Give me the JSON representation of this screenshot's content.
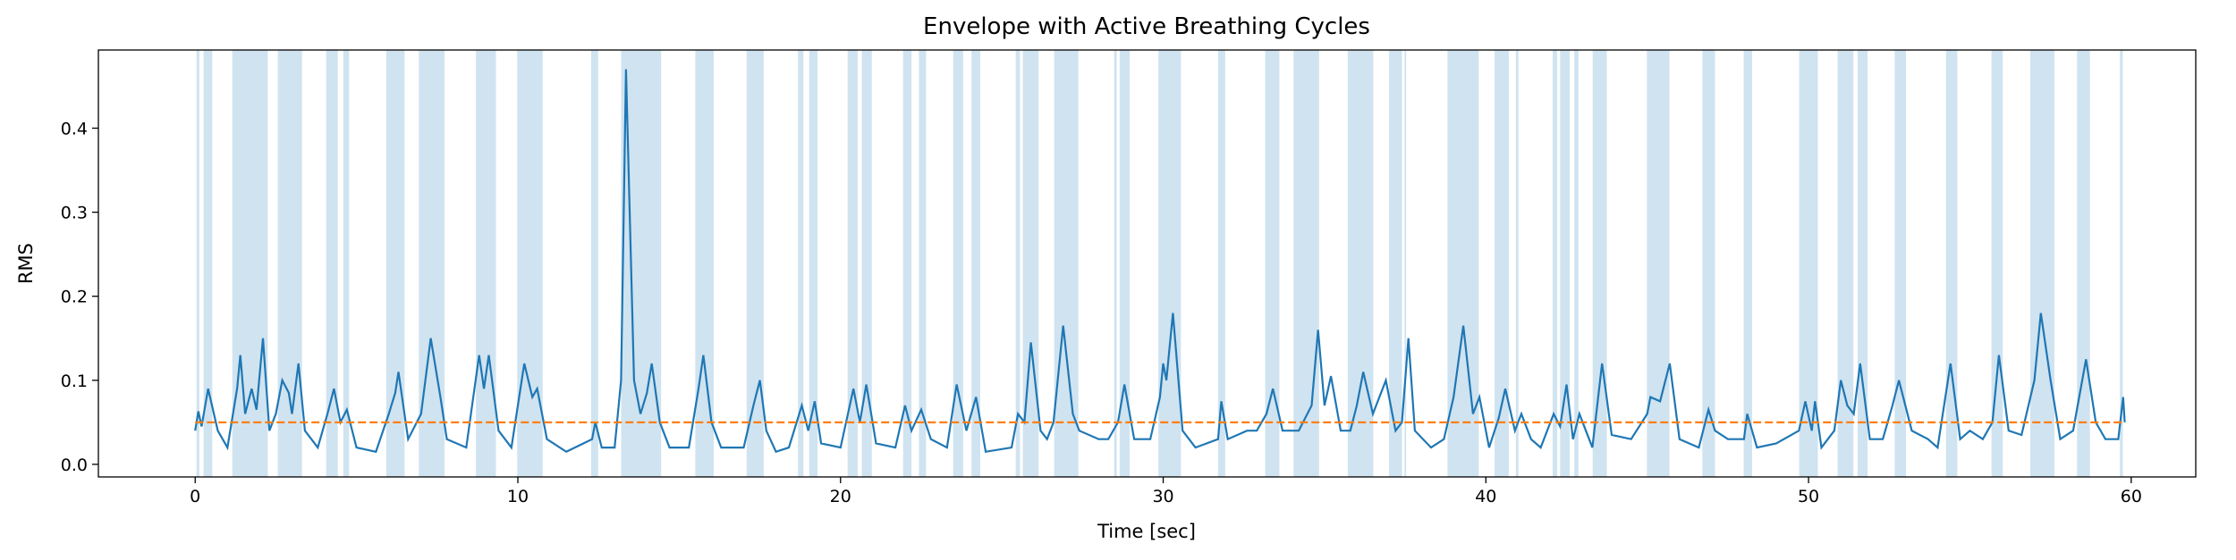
{
  "chart_data": {
    "type": "line",
    "title": "Envelope with Active Breathing Cycles",
    "x_label": "Time [sec]",
    "y_label": "RMS",
    "xlim": [
      -3,
      62
    ],
    "ylim": [
      -0.015,
      0.493
    ],
    "xticks": [
      0,
      10,
      20,
      30,
      40,
      50,
      60
    ],
    "yticks": [
      {
        "value": 0,
        "label": "0.0"
      },
      0.1,
      0.2,
      0.3,
      0.4
    ],
    "threshold": 0.05,
    "threshold_color": "#ff7f0e",
    "span_color": "#a9cce3",
    "spans": [
      [
        0.04,
        0.13
      ],
      [
        0.26,
        0.53
      ],
      [
        1.15,
        2.25
      ],
      [
        2.56,
        3.31
      ],
      [
        4.06,
        4.42
      ],
      [
        4.59,
        4.77
      ],
      [
        5.92,
        6.49
      ],
      [
        6.93,
        7.73
      ],
      [
        8.7,
        9.32
      ],
      [
        9.98,
        10.77
      ],
      [
        12.27,
        12.49
      ],
      [
        13.2,
        14.44
      ],
      [
        15.5,
        16.07
      ],
      [
        17.09,
        17.62
      ],
      [
        18.68,
        18.85
      ],
      [
        19.03,
        19.29
      ],
      [
        20.22,
        20.53
      ],
      [
        20.66,
        20.97
      ],
      [
        21.94,
        22.2
      ],
      [
        22.43,
        22.65
      ],
      [
        23.49,
        23.8
      ],
      [
        24.06,
        24.33
      ],
      [
        25.43,
        25.56
      ],
      [
        25.65,
        26.14
      ],
      [
        26.62,
        27.37
      ],
      [
        28.48,
        28.56
      ],
      [
        28.65,
        28.96
      ],
      [
        29.85,
        30.55
      ],
      [
        31.7,
        31.92
      ],
      [
        33.16,
        33.6
      ],
      [
        34.04,
        34.83
      ],
      [
        35.72,
        36.51
      ],
      [
        37.0,
        37.4
      ],
      [
        37.48,
        37.53
      ],
      [
        38.81,
        39.78
      ],
      [
        40.27,
        40.71
      ],
      [
        40.93,
        41.01
      ],
      [
        42.07,
        42.21
      ],
      [
        42.3,
        42.6
      ],
      [
        42.74,
        42.87
      ],
      [
        43.31,
        43.75
      ],
      [
        44.99,
        45.69
      ],
      [
        46.71,
        47.1
      ],
      [
        47.99,
        48.25
      ],
      [
        49.71,
        50.29
      ],
      [
        50.9,
        51.39
      ],
      [
        51.52,
        51.83
      ],
      [
        52.67,
        53.02
      ],
      [
        54.26,
        54.61
      ],
      [
        55.67,
        56.02
      ],
      [
        56.87,
        57.62
      ],
      [
        58.32,
        58.72
      ],
      [
        59.65,
        59.74
      ]
    ],
    "series": [
      {
        "color": "#1f77b4",
        "x": [
          0,
          0.1,
          0.2,
          0.4,
          0.7,
          1.0,
          1.3,
          1.4,
          1.55,
          1.75,
          1.9,
          2.1,
          2.3,
          2.5,
          2.7,
          2.9,
          3.0,
          3.2,
          3.4,
          3.8,
          4.1,
          4.3,
          4.5,
          4.7,
          5.0,
          5.6,
          6.0,
          6.2,
          6.3,
          6.6,
          7.0,
          7.3,
          7.6,
          7.8,
          8.4,
          8.8,
          8.95,
          9.1,
          9.4,
          9.8,
          10.2,
          10.45,
          10.6,
          10.9,
          11.5,
          12.3,
          12.4,
          12.6,
          13.0,
          13.2,
          13.35,
          13.6,
          13.8,
          14.0,
          14.15,
          14.4,
          14.7,
          15.3,
          15.6,
          15.75,
          16.0,
          16.3,
          17.0,
          17.3,
          17.5,
          17.7,
          18.0,
          18.4,
          18.8,
          19.0,
          19.2,
          19.4,
          20.0,
          20.4,
          20.6,
          20.8,
          21.1,
          21.7,
          22.0,
          22.2,
          22.5,
          22.8,
          23.3,
          23.6,
          23.9,
          24.2,
          24.5,
          25.3,
          25.5,
          25.7,
          25.9,
          26.2,
          26.4,
          26.6,
          26.9,
          27.2,
          27.4,
          28.0,
          28.3,
          28.6,
          28.8,
          29.1,
          29.6,
          29.9,
          30.0,
          30.1,
          30.3,
          30.6,
          31.0,
          31.7,
          31.8,
          32.0,
          32.6,
          32.9,
          33.2,
          33.4,
          33.7,
          34.2,
          34.6,
          34.8,
          35.0,
          35.2,
          35.5,
          35.8,
          36.0,
          36.2,
          36.5,
          36.9,
          37.2,
          37.4,
          37.6,
          37.8,
          38.3,
          38.7,
          39.0,
          39.3,
          39.6,
          39.8,
          40.1,
          40.4,
          40.6,
          40.9,
          41.1,
          41.4,
          41.7,
          42.1,
          42.3,
          42.5,
          42.7,
          42.9,
          43.1,
          43.3,
          43.6,
          43.9,
          44.5,
          45.0,
          45.1,
          45.4,
          45.7,
          46.0,
          46.6,
          46.9,
          47.1,
          47.5,
          48.0,
          48.1,
          48.4,
          49.0,
          49.7,
          49.9,
          50.1,
          50.2,
          50.4,
          50.8,
          51.0,
          51.2,
          51.4,
          51.6,
          51.9,
          52.3,
          52.6,
          52.8,
          53.2,
          53.7,
          54.0,
          54.4,
          54.7,
          55.0,
          55.4,
          55.7,
          55.9,
          56.2,
          56.6,
          57.0,
          57.2,
          57.5,
          57.8,
          58.2,
          58.6,
          58.9,
          59.2,
          59.6,
          59.75,
          59.8
        ],
        "values": [
          0.04,
          0.063,
          0.045,
          0.09,
          0.04,
          0.02,
          0.09,
          0.13,
          0.06,
          0.09,
          0.065,
          0.15,
          0.04,
          0.06,
          0.1,
          0.085,
          0.06,
          0.12,
          0.04,
          0.02,
          0.06,
          0.09,
          0.05,
          0.065,
          0.02,
          0.015,
          0.06,
          0.085,
          0.11,
          0.03,
          0.06,
          0.15,
          0.08,
          0.03,
          0.02,
          0.13,
          0.09,
          0.13,
          0.04,
          0.02,
          0.12,
          0.08,
          0.09,
          0.03,
          0.015,
          0.03,
          0.05,
          0.02,
          0.02,
          0.1,
          0.47,
          0.1,
          0.06,
          0.085,
          0.12,
          0.05,
          0.02,
          0.02,
          0.09,
          0.13,
          0.05,
          0.02,
          0.02,
          0.07,
          0.1,
          0.04,
          0.015,
          0.02,
          0.07,
          0.04,
          0.075,
          0.025,
          0.02,
          0.09,
          0.05,
          0.095,
          0.025,
          0.02,
          0.07,
          0.04,
          0.065,
          0.03,
          0.02,
          0.095,
          0.04,
          0.08,
          0.015,
          0.02,
          0.06,
          0.05,
          0.145,
          0.04,
          0.03,
          0.05,
          0.165,
          0.06,
          0.04,
          0.03,
          0.03,
          0.05,
          0.095,
          0.03,
          0.03,
          0.08,
          0.12,
          0.1,
          0.18,
          0.04,
          0.02,
          0.03,
          0.075,
          0.03,
          0.04,
          0.04,
          0.06,
          0.09,
          0.04,
          0.04,
          0.07,
          0.16,
          0.07,
          0.105,
          0.04,
          0.04,
          0.07,
          0.11,
          0.06,
          0.1,
          0.04,
          0.05,
          0.15,
          0.04,
          0.02,
          0.03,
          0.08,
          0.165,
          0.06,
          0.08,
          0.02,
          0.055,
          0.09,
          0.04,
          0.06,
          0.03,
          0.02,
          0.06,
          0.045,
          0.095,
          0.03,
          0.06,
          0.04,
          0.02,
          0.12,
          0.035,
          0.03,
          0.06,
          0.08,
          0.075,
          0.12,
          0.03,
          0.02,
          0.065,
          0.04,
          0.03,
          0.03,
          0.06,
          0.02,
          0.025,
          0.04,
          0.075,
          0.04,
          0.075,
          0.02,
          0.04,
          0.1,
          0.07,
          0.06,
          0.12,
          0.03,
          0.03,
          0.07,
          0.1,
          0.04,
          0.03,
          0.02,
          0.12,
          0.03,
          0.04,
          0.03,
          0.05,
          0.13,
          0.04,
          0.035,
          0.1,
          0.18,
          0.1,
          0.03,
          0.04,
          0.125,
          0.05,
          0.03,
          0.03,
          0.08,
          0.05
        ]
      }
    ]
  }
}
